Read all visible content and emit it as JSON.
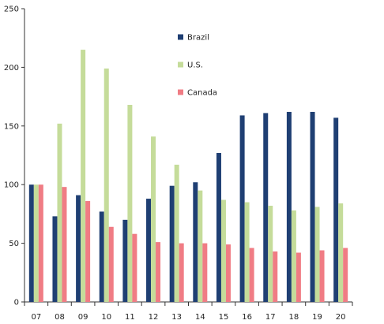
{
  "chart_data": {
    "type": "bar",
    "categories": [
      "07",
      "08",
      "09",
      "10",
      "11",
      "12",
      "13",
      "14",
      "15",
      "16",
      "17",
      "18",
      "19",
      "20"
    ],
    "series": [
      {
        "name": "Brazil",
        "color": "#1f3f73",
        "values": [
          100,
          73,
          91,
          77,
          70,
          88,
          99,
          102,
          127,
          159,
          161,
          162,
          162,
          157
        ]
      },
      {
        "name": "U.S.",
        "color": "#c5dc9a",
        "values": [
          100,
          152,
          215,
          199,
          168,
          141,
          117,
          95,
          87,
          85,
          82,
          78,
          81,
          84
        ]
      },
      {
        "name": "Canada",
        "color": "#f07c84",
        "values": [
          100,
          98,
          86,
          64,
          58,
          51,
          50,
          50,
          49,
          46,
          43,
          42,
          44,
          46
        ]
      }
    ],
    "ylim": [
      0,
      250
    ],
    "yticks": [
      0,
      50,
      100,
      150,
      200,
      250
    ],
    "legend_position": "upper-middle",
    "grid": false
  }
}
